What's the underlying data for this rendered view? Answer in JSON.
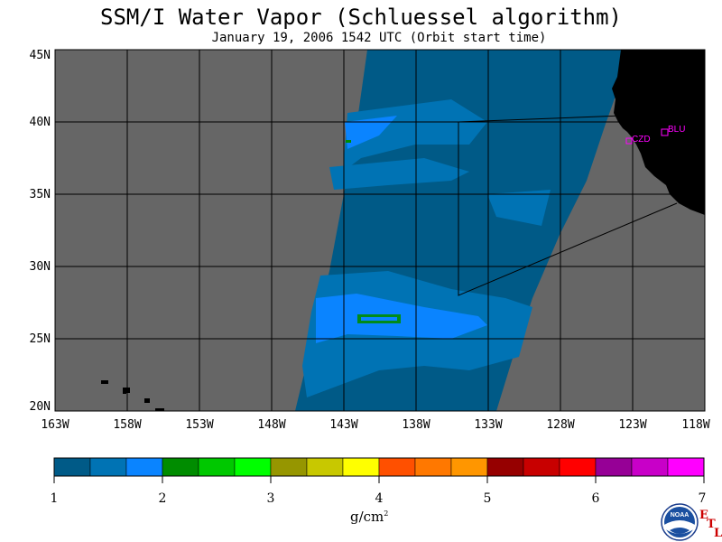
{
  "title": "SSM/I Water Vapor (Schluessel algorithm)",
  "subtitle": "January 19, 2006  1542 UTC  (Orbit start time)",
  "lat_labels": [
    "45N",
    "40N",
    "35N",
    "30N",
    "25N",
    "20N"
  ],
  "lon_labels": [
    "163W",
    "158W",
    "153W",
    "148W",
    "143W",
    "138W",
    "133W",
    "128W",
    "123W",
    "118W"
  ],
  "stations": [
    {
      "name": "CZD",
      "color": "#ff00ff"
    },
    {
      "name": "BLU",
      "color": "#ff00ff"
    }
  ],
  "colorbar": {
    "colors": [
      "#005a87",
      "#0073b4",
      "#0a84ff",
      "#008c00",
      "#00c800",
      "#00ff00",
      "#969600",
      "#c8c800",
      "#ffff00",
      "#ff5000",
      "#ff7800",
      "#ff9600",
      "#960000",
      "#c80000",
      "#ff0000",
      "#960096",
      "#c800c8",
      "#ff00ff"
    ],
    "labels": [
      "1",
      "2",
      "3",
      "4",
      "5",
      "6",
      "7"
    ],
    "units": "g/cm",
    "units_sup": "2"
  },
  "logo": {
    "text": "NOAA",
    "etl": [
      "E",
      "T",
      "L"
    ]
  },
  "colors": {
    "land": "#000000",
    "no_data": "#666666",
    "grid": "#000000"
  }
}
